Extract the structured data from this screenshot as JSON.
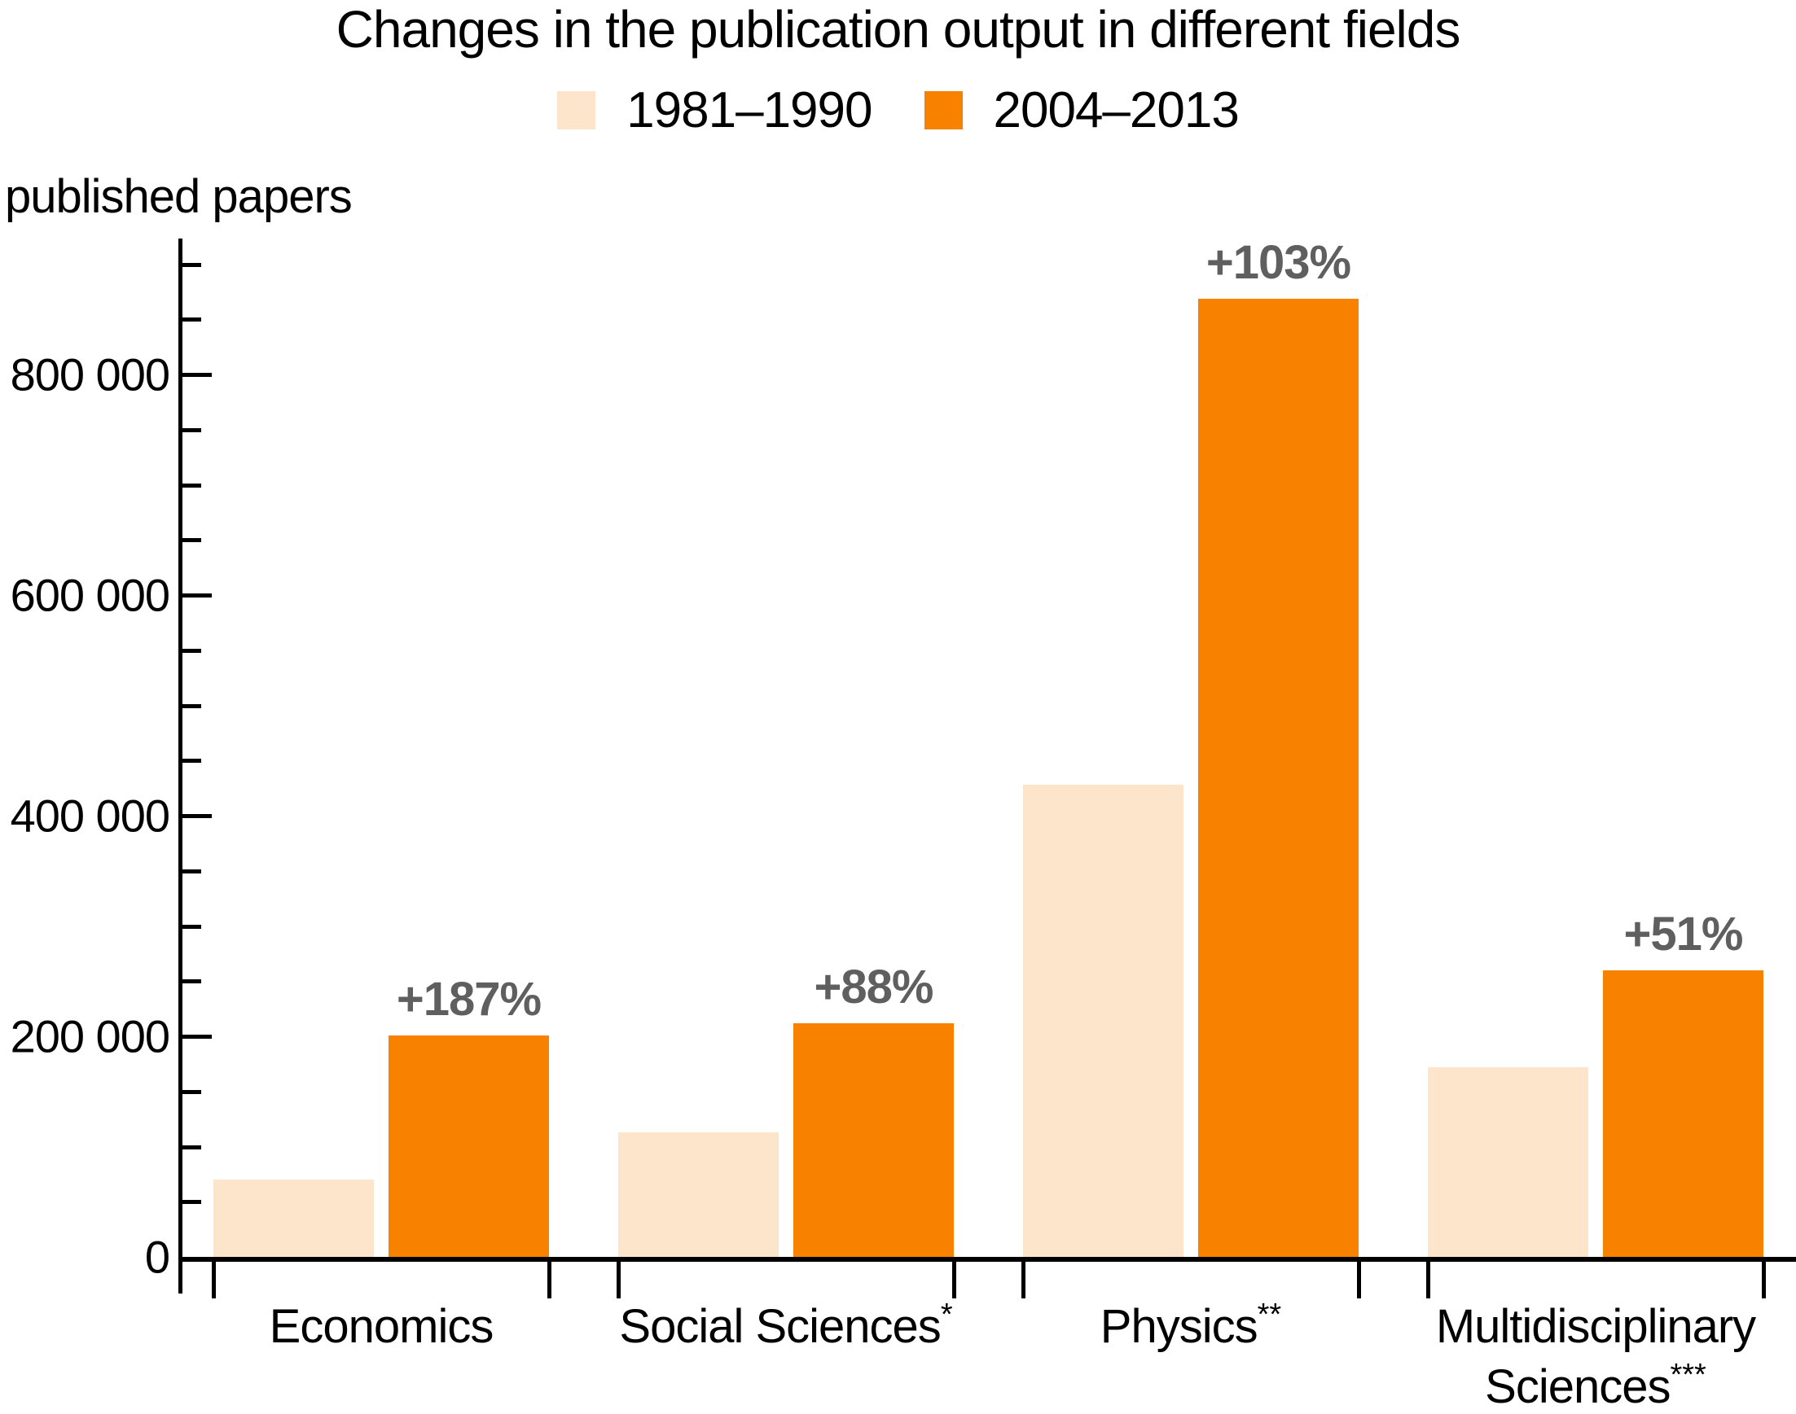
{
  "chart_data": {
    "type": "bar",
    "title": "Changes in the publication output in different fields",
    "ylabel": "published papers",
    "xlabel": "",
    "grid": false,
    "legend_position": "top-center",
    "categories": [
      "Economics",
      "Social Sciences*",
      "Physics**",
      "Multidisciplinary Sciences***"
    ],
    "category_lines": [
      [
        {
          "text": "Economics",
          "sup": ""
        }
      ],
      [
        {
          "text": "Social Sciences",
          "sup": "*"
        }
      ],
      [
        {
          "text": "Physics",
          "sup": "**"
        }
      ],
      [
        {
          "text": "Multidisciplinary",
          "sup": ""
        },
        {
          "text": "Sciences",
          "sup": "***"
        }
      ]
    ],
    "series": [
      {
        "name": "1981–1990",
        "color": "#FCE5CA",
        "values": [
          70000,
          113000,
          428000,
          172000
        ]
      },
      {
        "name": "2004–2013",
        "color": "#F98100",
        "values": [
          201000,
          212000,
          869000,
          260000
        ]
      }
    ],
    "percent_labels": [
      "+187%",
      "+88%",
      "+103%",
      "+51%"
    ],
    "percent_label_color": "#5F5F5F",
    "y_axis": {
      "min": 0,
      "max": 920000,
      "major_tick_step": 200000,
      "minor_tick_step": 50000,
      "tick_labels": [
        {
          "value": 0,
          "label": "0"
        },
        {
          "value": 200000,
          "label": "200 000"
        },
        {
          "value": 400000,
          "label": "400 000"
        },
        {
          "value": 600000,
          "label": "600 000"
        },
        {
          "value": 800000,
          "label": "800 000"
        }
      ]
    },
    "colors": {
      "axis": "#000000",
      "text": "#000000"
    }
  }
}
